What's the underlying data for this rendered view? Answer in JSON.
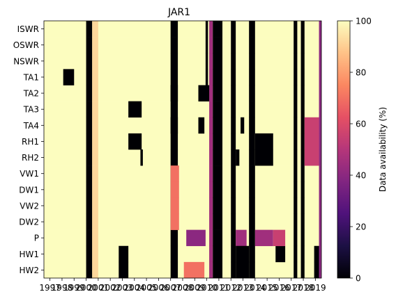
{
  "chart_data": {
    "type": "heatmap",
    "title": "JAR1",
    "xlabel": "",
    "ylabel": "",
    "rows": [
      "ISWR",
      "OSWR",
      "NSWR",
      "TA1",
      "TA2",
      "TA3",
      "TA4",
      "RH1",
      "RH2",
      "VW1",
      "DW1",
      "VW2",
      "DW2",
      "P",
      "HW1",
      "HW2"
    ],
    "x_tick_labels": [
      "1997",
      "1998",
      "1999",
      "2000",
      "2001",
      "2002",
      "2003",
      "2004",
      "2005",
      "2006",
      "2007",
      "2008",
      "2009",
      "2010",
      "2011",
      "2012",
      "2013",
      "2014",
      "2015",
      "2016",
      "2017",
      "2018",
      "2019"
    ],
    "x_range": [
      "1997-01",
      "2019-12"
    ],
    "colorbar": {
      "label": "Data availability (%)",
      "range": [
        0,
        100
      ],
      "ticks": [
        0,
        20,
        40,
        60,
        80,
        100
      ],
      "colormap": "magma",
      "stops": [
        "#000004",
        "#1c1044",
        "#4f127b",
        "#812581",
        "#b5367a",
        "#e55064",
        "#fb8761",
        "#fec287",
        "#fcfdbf"
      ]
    },
    "background_value": 100,
    "periods": [
      {
        "rows": "all",
        "start": 2000.5,
        "end": 2001.0,
        "value": 0
      },
      {
        "rows": "all",
        "start": 2001.0,
        "end": 2001.5,
        "value": 92
      },
      {
        "rows": [
          "TA1"
        ],
        "start": 1998.6,
        "end": 1999.5,
        "value": 0
      },
      {
        "rows": [
          "ISWR",
          "OSWR",
          "NSWR",
          "TA1",
          "TA2",
          "TA3",
          "TA4",
          "RH1",
          "RH2",
          "VW1",
          "DW1",
          "VW2",
          "DW2",
          "P"
        ],
        "start": 2007.5,
        "end": 2008.1,
        "value": 0
      },
      {
        "rows": [
          "TA2",
          "TA4"
        ],
        "start": 2007.5,
        "end": 2008.1,
        "value": 0
      },
      {
        "rows": [
          "TA3"
        ],
        "start": 2004.0,
        "end": 2005.1,
        "value": 0
      },
      {
        "rows": [
          "RH1"
        ],
        "start": 2004.0,
        "end": 2005.1,
        "value": 0
      },
      {
        "rows": [
          "RH2"
        ],
        "start": 2005.0,
        "end": 2005.2,
        "value": 0
      },
      {
        "rows": [
          "HW1",
          "HW2"
        ],
        "start": 2003.2,
        "end": 2004.0,
        "value": 0
      },
      {
        "rows": [
          "HW1",
          "HW2"
        ],
        "start": 2007.5,
        "end": 2008.1,
        "value": 0
      },
      {
        "rows": [
          "P"
        ],
        "start": 2008.8,
        "end": 2010.4,
        "value": 40
      },
      {
        "rows": [
          "VW1",
          "DW1",
          "VW2",
          "DW2"
        ],
        "start": 2007.5,
        "end": 2008.2,
        "value": 70
      },
      {
        "rows": [
          "HW2"
        ],
        "start": 2008.6,
        "end": 2010.3,
        "value": 70
      },
      {
        "rows": [
          "ISWR",
          "OSWR",
          "NSWR",
          "TA1"
        ],
        "start": 2010.4,
        "end": 2010.6,
        "value": 0
      },
      {
        "rows": [
          "TA2"
        ],
        "start": 2009.8,
        "end": 2010.8,
        "value": 0
      },
      {
        "rows": [
          "TA4"
        ],
        "start": 2009.8,
        "end": 2010.3,
        "value": 0
      },
      {
        "rows": "all",
        "start": 2010.7,
        "end": 2011.0,
        "value": 45
      },
      {
        "rows": "all",
        "start": 2011.0,
        "end": 2011.8,
        "value": 0
      },
      {
        "rows": "all",
        "start": 2011.8,
        "end": 2012.5,
        "value": 100
      },
      {
        "rows": "all",
        "start": 2012.5,
        "end": 2012.9,
        "value": 0
      },
      {
        "rows": [
          "P"
        ],
        "start": 2012.9,
        "end": 2013.8,
        "value": 45
      },
      {
        "rows": [
          "HW1",
          "HW2"
        ],
        "start": 2012.9,
        "end": 2014.0,
        "value": 0
      },
      {
        "rows": [
          "TA4"
        ],
        "start": 2013.3,
        "end": 2013.6,
        "value": 0
      },
      {
        "rows": [
          "RH2"
        ],
        "start": 2012.9,
        "end": 2013.2,
        "value": 0
      },
      {
        "rows": "all",
        "start": 2014.0,
        "end": 2014.5,
        "value": 0
      },
      {
        "rows": [
          "RH1",
          "RH2"
        ],
        "start": 2014.5,
        "end": 2016.0,
        "value": 0
      },
      {
        "rows": [
          "P"
        ],
        "start": 2014.5,
        "end": 2016.0,
        "value": 45
      },
      {
        "rows": [
          "HW1"
        ],
        "start": 2016.2,
        "end": 2017.0,
        "value": 0
      },
      {
        "rows": [
          "P"
        ],
        "start": 2016.0,
        "end": 2017.0,
        "value": 55
      },
      {
        "rows": "all",
        "start": 2017.7,
        "end": 2018.0,
        "value": 0
      },
      {
        "rows": "all",
        "start": 2018.3,
        "end": 2018.6,
        "value": 0
      },
      {
        "rows": [
          "RH1",
          "RH2",
          "TA4"
        ],
        "start": 2018.6,
        "end": 2019.8,
        "value": 55
      },
      {
        "rows": [
          "HW1",
          "HW2"
        ],
        "start": 2019.4,
        "end": 2020.0,
        "value": 0
      },
      {
        "rows": "all",
        "start": 2019.8,
        "end": 2020.0,
        "value": 40
      }
    ]
  }
}
